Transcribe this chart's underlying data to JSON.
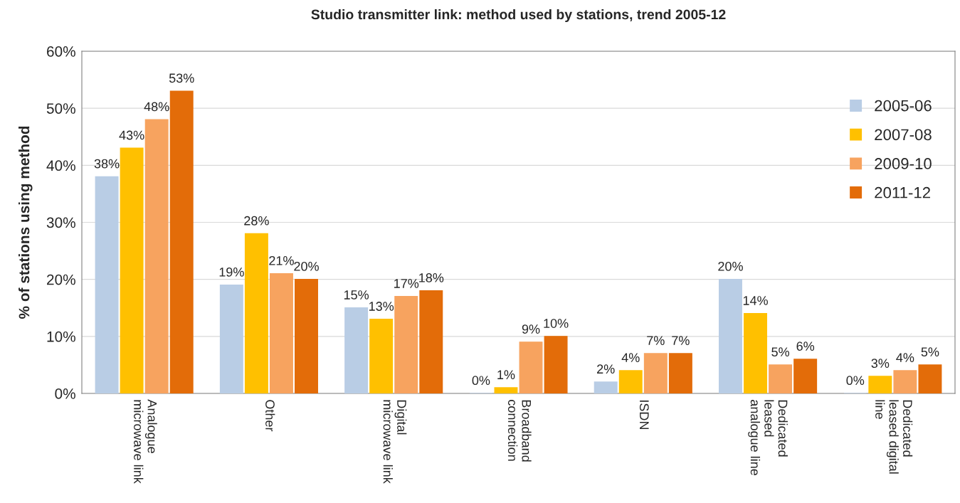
{
  "chart_data": {
    "type": "bar",
    "title": "Studio transmitter link: method used by stations, trend 2005-12",
    "ylabel": "% of stations using method",
    "categories": [
      "Analogue\nmicrowave link",
      "Other",
      "Digital\nmicrowave link",
      "Broadband\nconnection",
      "ISDN",
      "Dedicated\nleased\nanalogue line",
      "Dedicated\nleased digital\nline"
    ],
    "series": [
      {
        "name": "2005-06",
        "color": "#b9cde5",
        "values": [
          38,
          19,
          15,
          0,
          2,
          20,
          0
        ],
        "value_labels": [
          "38%",
          "19%",
          "15%",
          "0%",
          "2%",
          "20%",
          "0%"
        ]
      },
      {
        "name": "2007-08",
        "color": "#ffc000",
        "values": [
          43,
          28,
          13,
          1,
          4,
          14,
          3
        ],
        "value_labels": [
          "43%",
          "28%",
          "13%",
          "1%",
          "4%",
          "14%",
          "3%"
        ]
      },
      {
        "name": "2009-10",
        "color": "#f7a35f",
        "values": [
          48,
          21,
          17,
          9,
          7,
          5,
          4
        ],
        "value_labels": [
          "48%",
          "21%",
          "17%",
          "9%",
          "7%",
          "5%",
          "4%"
        ]
      },
      {
        "name": "2011-12",
        "color": "#e36c09",
        "values": [
          53,
          20,
          18,
          10,
          7,
          6,
          5
        ],
        "value_labels": [
          "53%",
          "20%",
          "18%",
          "10%",
          "7%",
          "6%",
          "5%"
        ]
      }
    ],
    "ylim": [
      0,
      60
    ],
    "yticks": [
      {
        "value": 0,
        "label": "0%"
      },
      {
        "value": 10,
        "label": "10%"
      },
      {
        "value": 20,
        "label": "20%"
      },
      {
        "value": 30,
        "label": "30%"
      },
      {
        "value": 40,
        "label": "40%"
      },
      {
        "value": 50,
        "label": "50%"
      },
      {
        "value": 60,
        "label": "60%"
      }
    ],
    "grid": "y",
    "legend": "top right"
  }
}
